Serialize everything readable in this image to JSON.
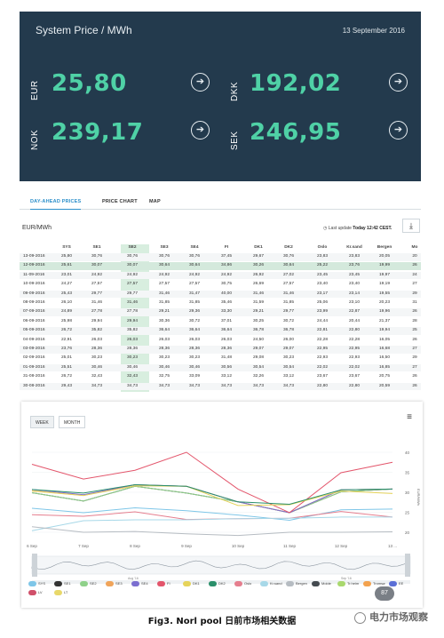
{
  "hero": {
    "title": "System Price / MWh",
    "date": "13 September 2016",
    "prices": [
      {
        "currency": "EUR",
        "value": "25,80"
      },
      {
        "currency": "DKK",
        "value": "192,02"
      },
      {
        "currency": "NOK",
        "value": "239,17"
      },
      {
        "currency": "SEK",
        "value": "246,95"
      }
    ]
  },
  "tabs": [
    "DAY-AHEAD PRICES",
    "PRICE CHART",
    "MAP"
  ],
  "table": {
    "unit": "EUR/MWh",
    "last_update_label": "Last update",
    "last_update_value": "Today 12:42 CEST.",
    "columns": [
      "",
      "SYS",
      "SE1",
      "SE2",
      "SE3",
      "SE4",
      "FI",
      "DK1",
      "DK2",
      "Oslo",
      "Kr.sand",
      "Bergen",
      "Mo"
    ],
    "rows": [
      [
        "13-09-2016",
        "25,80",
        "30,76",
        "30,76",
        "30,76",
        "30,76",
        "37,45",
        "29,67",
        "30,76",
        "23,83",
        "23,83",
        "20,05",
        "20"
      ],
      [
        "12-09-2016",
        "25,61",
        "30,07",
        "30,07",
        "30,64",
        "30,64",
        "34,86",
        "30,26",
        "30,64",
        "25,22",
        "23,76",
        "19,99",
        "26"
      ],
      [
        "11-09-2016",
        "23,01",
        "24,92",
        "24,92",
        "24,92",
        "24,92",
        "24,92",
        "26,92",
        "27,02",
        "23,45",
        "23,45",
        "19,97",
        "24"
      ],
      [
        "10-09-2016",
        "24,27",
        "27,57",
        "27,57",
        "27,57",
        "27,57",
        "30,75",
        "26,69",
        "27,57",
        "23,40",
        "23,40",
        "19,19",
        "27"
      ],
      [
        "09-09-2016",
        "25,43",
        "29,77",
        "29,77",
        "31,46",
        "31,47",
        "40,00",
        "31,46",
        "31,46",
        "23,17",
        "23,14",
        "19,55",
        "29"
      ],
      [
        "08-09-2016",
        "26,10",
        "31,46",
        "31,46",
        "31,85",
        "31,85",
        "35,46",
        "31,59",
        "31,85",
        "25,06",
        "23,10",
        "20,23",
        "31"
      ],
      [
        "07-09-2016",
        "24,89",
        "27,78",
        "27,78",
        "29,21",
        "29,36",
        "33,30",
        "29,21",
        "29,77",
        "23,99",
        "22,87",
        "19,96",
        "26"
      ],
      [
        "06-09-2016",
        "25,98",
        "29,94",
        "29,94",
        "30,36",
        "30,72",
        "37,01",
        "30,25",
        "30,72",
        "24,44",
        "20,44",
        "21,37",
        "28"
      ],
      [
        "05-09-2016",
        "26,72",
        "35,82",
        "35,82",
        "36,64",
        "36,64",
        "36,64",
        "36,78",
        "36,78",
        "22,81",
        "22,80",
        "19,94",
        "25"
      ],
      [
        "04-09-2016",
        "22,91",
        "26,03",
        "26,03",
        "26,03",
        "26,03",
        "26,03",
        "24,50",
        "26,00",
        "22,28",
        "22,28",
        "16,05",
        "26"
      ],
      [
        "03-09-2016",
        "23,76",
        "28,36",
        "28,36",
        "28,36",
        "28,36",
        "28,36",
        "29,07",
        "29,07",
        "22,95",
        "22,95",
        "16,68",
        "27"
      ],
      [
        "02-09-2016",
        "25,01",
        "30,23",
        "30,23",
        "30,23",
        "30,23",
        "31,48",
        "29,08",
        "30,23",
        "22,93",
        "22,93",
        "16,50",
        "29"
      ],
      [
        "01-09-2016",
        "25,51",
        "30,46",
        "30,46",
        "30,46",
        "30,46",
        "30,56",
        "30,54",
        "30,54",
        "22,02",
        "22,02",
        "16,85",
        "27"
      ],
      [
        "31-08-2016",
        "26,72",
        "32,43",
        "32,43",
        "32,75",
        "33,09",
        "33,12",
        "32,26",
        "33,12",
        "23,67",
        "23,67",
        "20,75",
        "26"
      ],
      [
        "30-08-2016",
        "29,43",
        "34,73",
        "34,73",
        "34,73",
        "34,73",
        "34,73",
        "34,73",
        "34,73",
        "22,80",
        "22,80",
        "20,59",
        "26"
      ]
    ]
  },
  "chart": {
    "buttons": [
      "WEEK",
      "MONTH"
    ],
    "x_ticks": [
      "6 Sep",
      "7 Sep",
      "8 Sep",
      "9 Sep",
      "10 Sep",
      "11 Sep",
      "12 Sep",
      "13 ..."
    ],
    "y_ticks": [
      "40",
      "35",
      "30",
      "25",
      "20"
    ],
    "y_label": "EUR/MWh",
    "nav_ticks": [
      "Aug '16",
      "Sep '16"
    ],
    "legend": [
      {
        "name": "SYS",
        "color": "#7ec6e8"
      },
      {
        "name": "SE1",
        "color": "#333333"
      },
      {
        "name": "SE2",
        "color": "#8fd18a"
      },
      {
        "name": "SE3",
        "color": "#f0a45a"
      },
      {
        "name": "SE4",
        "color": "#7b6fd0"
      },
      {
        "name": "FI",
        "color": "#e3556b"
      },
      {
        "name": "DK1",
        "color": "#e6d35a"
      },
      {
        "name": "DK2",
        "color": "#2a8f6a"
      },
      {
        "name": "Oslo",
        "color": "#e57e8e"
      },
      {
        "name": "Kr.sand",
        "color": "#a7d8e8"
      },
      {
        "name": "Bergen",
        "color": "#b6bcc2"
      },
      {
        "name": "Molde",
        "color": "#444a50"
      },
      {
        "name": "Tr.heim",
        "color": "#a9d86e"
      },
      {
        "name": "Tromsø",
        "color": "#f3a24e"
      },
      {
        "name": "EE",
        "color": "#5b6fd6"
      },
      {
        "name": "LV",
        "color": "#d0506a"
      },
      {
        "name": "LT",
        "color": "#e8d86a"
      }
    ],
    "badge": "87"
  },
  "caption": "Fig3. Norl pool 日前市场相关数据",
  "watermark": "电力市场观察",
  "chart_data": {
    "type": "line",
    "x": [
      "6 Sep",
      "7 Sep",
      "8 Sep",
      "9 Sep",
      "10 Sep",
      "11 Sep",
      "12 Sep",
      "13 Sep"
    ],
    "ylabel": "EUR/MWh",
    "ylim": [
      18,
      42
    ],
    "series": [
      {
        "name": "SYS",
        "values": [
          26.0,
          24.9,
          26.1,
          25.4,
          24.3,
          23.0,
          25.6,
          25.8
        ]
      },
      {
        "name": "SE1",
        "values": [
          29.9,
          27.8,
          31.5,
          29.8,
          27.6,
          24.9,
          30.1,
          30.8
        ]
      },
      {
        "name": "SE2",
        "values": [
          29.9,
          27.8,
          31.5,
          29.8,
          27.6,
          24.9,
          30.1,
          30.8
        ]
      },
      {
        "name": "SE3",
        "values": [
          30.4,
          29.2,
          31.9,
          31.5,
          27.6,
          24.9,
          30.6,
          30.8
        ]
      },
      {
        "name": "SE4",
        "values": [
          30.7,
          29.4,
          31.9,
          31.5,
          27.6,
          24.9,
          30.6,
          30.8
        ]
      },
      {
        "name": "FI",
        "values": [
          37.0,
          33.3,
          35.5,
          40.0,
          30.8,
          24.9,
          34.9,
          37.5
        ]
      },
      {
        "name": "DK1",
        "values": [
          30.3,
          29.2,
          31.6,
          31.5,
          26.7,
          26.9,
          30.3,
          29.7
        ]
      },
      {
        "name": "DK2",
        "values": [
          30.7,
          29.8,
          31.9,
          31.5,
          27.6,
          27.0,
          30.6,
          30.8
        ]
      },
      {
        "name": "Oslo",
        "values": [
          24.4,
          24.0,
          25.1,
          23.2,
          23.4,
          23.5,
          25.2,
          23.8
        ]
      },
      {
        "name": "Kr.sand",
        "values": [
          20.4,
          22.9,
          23.1,
          23.1,
          23.4,
          23.5,
          23.8,
          23.8
        ]
      },
      {
        "name": "Bergen",
        "values": [
          21.4,
          20.0,
          20.2,
          19.6,
          19.2,
          20.0,
          20.0,
          20.1
        ]
      }
    ]
  }
}
